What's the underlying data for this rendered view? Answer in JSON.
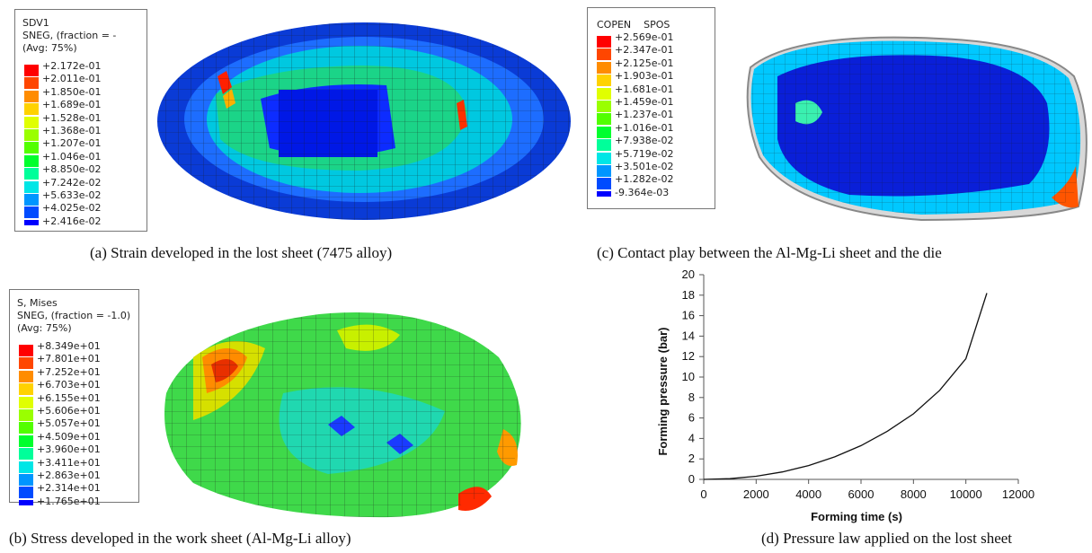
{
  "panels": {
    "a": {
      "caption": "(a) Strain developed in the lost sheet (7475 alloy)",
      "legend_title": [
        "SDV1",
        "SNEG, (fraction = -",
        "(Avg: 75%)"
      ],
      "legend_values": [
        "+2.172e-01",
        "+2.011e-01",
        "+1.850e-01",
        "+1.689e-01",
        "+1.528e-01",
        "+1.368e-01",
        "+1.207e-01",
        "+1.046e-01",
        "+8.850e-02",
        "+7.242e-02",
        "+5.633e-02",
        "+4.025e-02",
        "+2.416e-02"
      ]
    },
    "b": {
      "caption": "(b) Stress developed in the work sheet (Al-Mg-Li alloy)",
      "legend_title": [
        "S, Mises",
        "SNEG, (fraction = -1.0)",
        "(Avg: 75%)"
      ],
      "legend_values": [
        "+8.349e+01",
        "+7.801e+01",
        "+7.252e+01",
        "+6.703e+01",
        "+6.155e+01",
        "+5.606e+01",
        "+5.057e+01",
        "+4.509e+01",
        "+3.960e+01",
        "+3.411e+01",
        "+2.863e+01",
        "+2.314e+01",
        "+1.765e+01"
      ]
    },
    "c": {
      "caption": "(c) Contact play between the Al-Mg-Li sheet and the die",
      "legend_title": [
        "COPEN    SPOS"
      ],
      "legend_values": [
        "+2.569e-01",
        "+2.347e-01",
        "+2.125e-01",
        "+1.903e-01",
        "+1.681e-01",
        "+1.459e-01",
        "+1.237e-01",
        "+1.016e-01",
        "+7.938e-02",
        "+5.719e-02",
        "+3.501e-02",
        "+1.282e-02",
        "-9.364e-03"
      ]
    },
    "d": {
      "caption": "(d) Pressure law applied on the lost sheet"
    }
  },
  "contour_colors": [
    "#ff0000",
    "#ff4600",
    "#ff8c00",
    "#ffd200",
    "#e0ff00",
    "#9aff00",
    "#52ff00",
    "#00ff2e",
    "#00ff9a",
    "#00e6e6",
    "#0096ff",
    "#004bff",
    "#0000ff"
  ],
  "chart_data": {
    "type": "line",
    "title": "",
    "xlabel": "Forming time (s)",
    "ylabel": "Forming pressure (bar)",
    "xlim": [
      0,
      12000
    ],
    "ylim": [
      0,
      20
    ],
    "xticks": [
      0,
      2000,
      4000,
      6000,
      8000,
      10000,
      12000
    ],
    "yticks": [
      0,
      2,
      4,
      6,
      8,
      10,
      12,
      14,
      16,
      18,
      20
    ],
    "grid": false,
    "series": [
      {
        "x": [
          0,
          1000,
          2000,
          3000,
          4000,
          5000,
          6000,
          7000,
          8000,
          9000,
          10000,
          10800
        ],
        "y": [
          0,
          0.07,
          0.31,
          0.73,
          1.35,
          2.2,
          3.3,
          4.7,
          6.4,
          8.7,
          11.8,
          18.2
        ]
      }
    ]
  }
}
